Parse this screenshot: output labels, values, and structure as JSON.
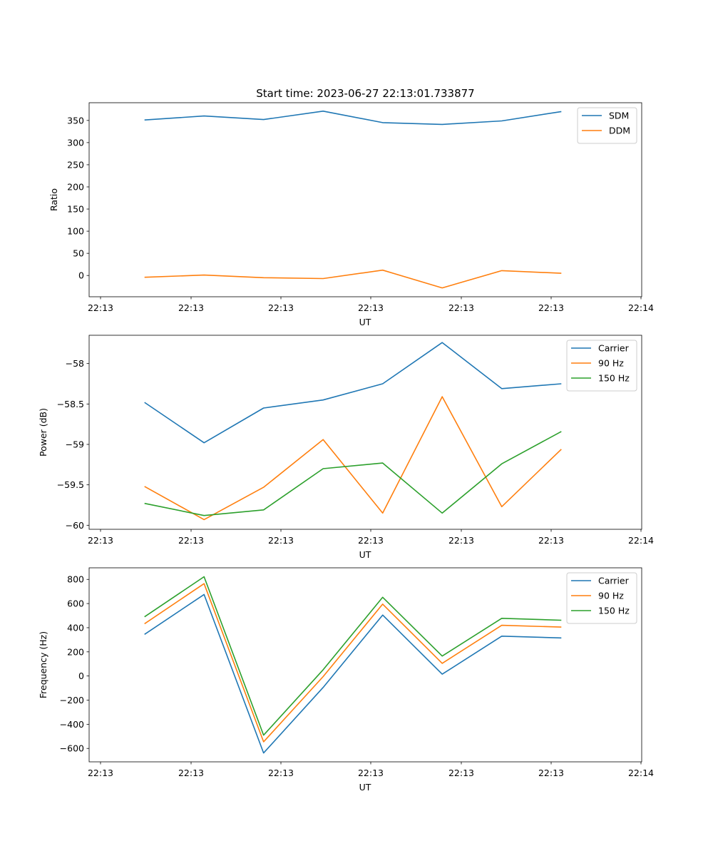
{
  "title": "Start time: 2023-06-27 22:13:01.733877",
  "x_tick_labels": [
    "22:13",
    "22:13",
    "22:13",
    "22:13",
    "22:13",
    "22:13",
    "22:14"
  ],
  "chart_data": [
    {
      "type": "line",
      "xlabel": "UT",
      "ylabel": "Ratio",
      "x_time_s": [
        "22:13:01.73",
        "22:13:02.73",
        "22:13:03.73",
        "22:13:04.73",
        "22:13:05.73",
        "22:13:06.73",
        "22:13:07.73",
        "22:13:08.73"
      ],
      "xlim": [
        "22:13:00.80",
        "22:13:10.08"
      ],
      "ylim": [
        -48,
        390
      ],
      "yticks": [
        0,
        50,
        100,
        150,
        200,
        250,
        300,
        350
      ],
      "legend_position": "upper right",
      "series": [
        {
          "name": "SDM",
          "color": "#1f77b4",
          "values": [
            351,
            360,
            352,
            371,
            345,
            341,
            349,
            370
          ]
        },
        {
          "name": "DDM",
          "color": "#ff7f0e",
          "values": [
            -4,
            1,
            -5,
            -7,
            12,
            -28,
            11,
            5
          ]
        }
      ]
    },
    {
      "type": "line",
      "xlabel": "UT",
      "ylabel": "Power (dB)",
      "x_time_s": [
        "22:13:01.73",
        "22:13:02.73",
        "22:13:03.73",
        "22:13:04.73",
        "22:13:05.73",
        "22:13:06.73",
        "22:13:07.73",
        "22:13:08.73"
      ],
      "xlim": [
        "22:13:00.80",
        "22:13:10.08"
      ],
      "ylim": [
        -60.05,
        -57.65
      ],
      "yticks": [
        -60.0,
        -59.5,
        -59.0,
        -58.5,
        -58.0
      ],
      "legend_position": "upper right",
      "series": [
        {
          "name": "Carrier",
          "color": "#1f77b4",
          "values": [
            -58.48,
            -58.98,
            -58.55,
            -58.45,
            -58.25,
            -57.74,
            -58.31,
            -58.25
          ]
        },
        {
          "name": "90 Hz",
          "color": "#ff7f0e",
          "values": [
            -59.52,
            -59.93,
            -59.53,
            -58.94,
            -59.85,
            -58.41,
            -59.77,
            -59.06
          ]
        },
        {
          "name": "150 Hz",
          "color": "#2ca02c",
          "values": [
            -59.73,
            -59.88,
            -59.81,
            -59.3,
            -59.23,
            -59.85,
            -59.24,
            -58.84
          ]
        }
      ]
    },
    {
      "type": "line",
      "xlabel": "UT",
      "ylabel": "Frequency (Hz)",
      "x_time_s": [
        "22:13:01.73",
        "22:13:02.73",
        "22:13:03.73",
        "22:13:04.73",
        "22:13:05.73",
        "22:13:06.73",
        "22:13:07.73",
        "22:13:08.73"
      ],
      "xlim": [
        "22:13:00.80",
        "22:13:10.08"
      ],
      "ylim": [
        -711,
        896
      ],
      "yticks": [
        -600,
        -400,
        -200,
        0,
        200,
        400,
        600,
        800
      ],
      "legend_position": "upper right",
      "series": [
        {
          "name": "Carrier",
          "color": "#1f77b4",
          "values": [
            345,
            675,
            -638,
            -95,
            505,
            15,
            330,
            315
          ]
        },
        {
          "name": "90 Hz",
          "color": "#ff7f0e",
          "values": [
            433,
            765,
            -545,
            -5,
            595,
            105,
            420,
            405
          ]
        },
        {
          "name": "150 Hz",
          "color": "#2ca02c",
          "values": [
            490,
            822,
            -490,
            52,
            652,
            165,
            478,
            462
          ]
        }
      ]
    }
  ]
}
